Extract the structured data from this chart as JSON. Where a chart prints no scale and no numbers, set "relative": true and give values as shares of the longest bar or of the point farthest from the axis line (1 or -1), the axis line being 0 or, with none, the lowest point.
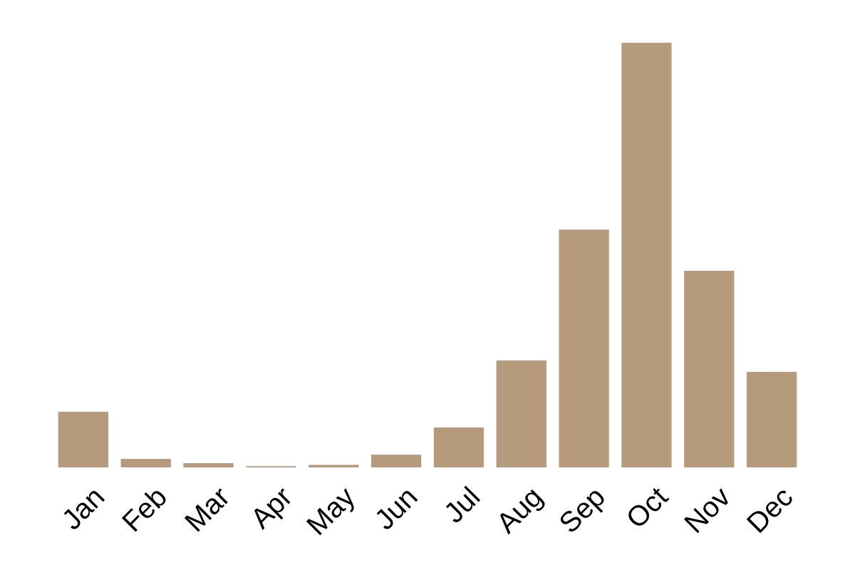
{
  "chart_data": {
    "type": "bar",
    "relative": true,
    "color": "#b59b7c",
    "categories": [
      "Jan",
      "Feb",
      "Mar",
      "Apr",
      "May",
      "Jun",
      "Jul",
      "Aug",
      "Sep",
      "Oct",
      "Nov",
      "Dec"
    ],
    "values": [
      0.131,
      0.02,
      0.01,
      0.003,
      0.006,
      0.03,
      0.094,
      0.252,
      0.56,
      1,
      0.463,
      0.225
    ]
  }
}
